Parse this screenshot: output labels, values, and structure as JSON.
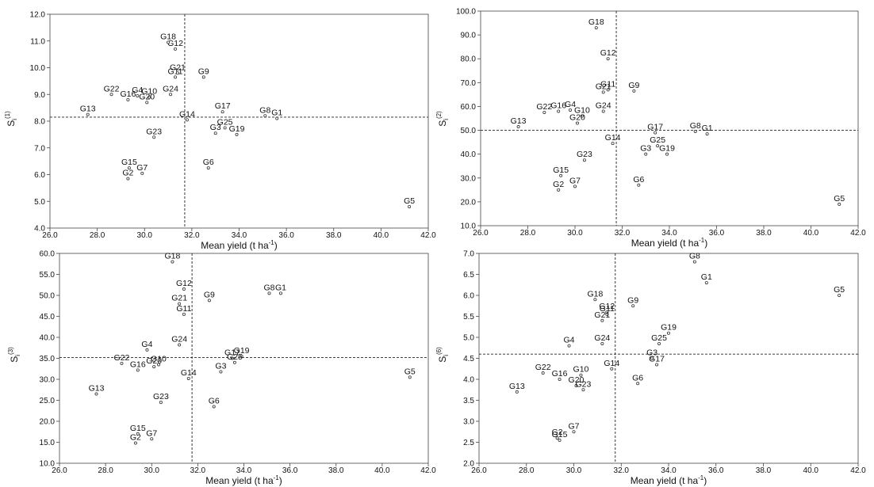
{
  "chart_data": [
    {
      "type": "scatter",
      "ylabel": "Si(1)",
      "ylabel_main": "S",
      "ylabel_sub": "i",
      "ylabel_sup": "(1)",
      "xlabel": "Mean yield (t ha-1)",
      "xlabel_main": "Mean yield (t ha",
      "xlabel_sup": "-1",
      "xlabel_close": ")",
      "xlim": [
        26.0,
        42.0
      ],
      "ylim": [
        4.0,
        12.0
      ],
      "xticks": [
        "26.0",
        "28.0",
        "30.0",
        "32.0",
        "34.0",
        "36.0",
        "38.0",
        "40.0",
        "42.0"
      ],
      "yticks": [
        "4.0",
        "5.0",
        "6.0",
        "7.0",
        "8.0",
        "9.0",
        "10.0",
        "11.0",
        "12.0"
      ],
      "ref_x": 31.7,
      "ref_y": 8.15,
      "points": [
        {
          "label": "G1",
          "x": 35.6,
          "y": 8.1
        },
        {
          "label": "G2",
          "x": 29.3,
          "y": 5.85
        },
        {
          "label": "G3",
          "x": 33.0,
          "y": 7.55
        },
        {
          "label": "G4",
          "x": 29.7,
          "y": 8.95
        },
        {
          "label": "G5",
          "x": 41.2,
          "y": 4.8
        },
        {
          "label": "G6",
          "x": 32.7,
          "y": 6.25
        },
        {
          "label": "G7",
          "x": 29.9,
          "y": 6.05
        },
        {
          "label": "G8",
          "x": 35.1,
          "y": 8.2
        },
        {
          "label": "G9",
          "x": 32.5,
          "y": 9.65
        },
        {
          "label": "G10",
          "x": 30.2,
          "y": 8.9
        },
        {
          "label": "G11",
          "x": 31.3,
          "y": 9.65
        },
        {
          "label": "G12",
          "x": 31.3,
          "y": 10.7
        },
        {
          "label": "G13",
          "x": 27.6,
          "y": 8.25
        },
        {
          "label": "G14",
          "x": 31.8,
          "y": 8.05
        },
        {
          "label": "G15",
          "x": 29.35,
          "y": 6.25
        },
        {
          "label": "G16",
          "x": 29.3,
          "y": 8.8
        },
        {
          "label": "G17",
          "x": 33.3,
          "y": 8.35
        },
        {
          "label": "G18",
          "x": 31.0,
          "y": 10.95
        },
        {
          "label": "G19",
          "x": 33.9,
          "y": 7.5
        },
        {
          "label": "G20",
          "x": 30.1,
          "y": 8.7
        },
        {
          "label": "G21",
          "x": 31.4,
          "y": 9.8
        },
        {
          "label": "G22",
          "x": 28.6,
          "y": 9.0
        },
        {
          "label": "G23",
          "x": 30.4,
          "y": 7.4
        },
        {
          "label": "G24",
          "x": 31.1,
          "y": 9.0
        },
        {
          "label": "G25",
          "x": 33.4,
          "y": 7.75
        }
      ]
    },
    {
      "type": "scatter",
      "ylabel": "Si(2)",
      "ylabel_main": "S",
      "ylabel_sub": "i",
      "ylabel_sup": "(2)",
      "xlabel": "Mean yield (t ha-1)",
      "xlabel_main": "Mean yield (t ha",
      "xlabel_sup": "-1",
      "xlabel_close": ")",
      "xlim": [
        26.0,
        42.0
      ],
      "ylim": [
        10.0,
        100.0
      ],
      "xticks": [
        "26.0",
        "28.0",
        "30.0",
        "32.0",
        "34.0",
        "36.0",
        "38.0",
        "40.0",
        "42.0"
      ],
      "yticks": [
        "10.0",
        "20.0",
        "30.0",
        "40.0",
        "50.0",
        "60.0",
        "70.0",
        "80.0",
        "90.0",
        "100.0"
      ],
      "ref_x": 31.75,
      "ref_y": 50.0,
      "points": [
        {
          "label": "G1",
          "x": 35.6,
          "y": 48.5
        },
        {
          "label": "G2",
          "x": 29.3,
          "y": 25.0
        },
        {
          "label": "G3",
          "x": 33.0,
          "y": 40.0
        },
        {
          "label": "G4",
          "x": 29.8,
          "y": 58.5
        },
        {
          "label": "G5",
          "x": 41.2,
          "y": 19.0
        },
        {
          "label": "G6",
          "x": 32.7,
          "y": 27.0
        },
        {
          "label": "G7",
          "x": 30.0,
          "y": 26.5
        },
        {
          "label": "G8",
          "x": 35.1,
          "y": 49.5
        },
        {
          "label": "G9",
          "x": 32.5,
          "y": 66.5
        },
        {
          "label": "G10",
          "x": 30.3,
          "y": 56.0
        },
        {
          "label": "G11",
          "x": 31.4,
          "y": 67.0
        },
        {
          "label": "G12",
          "x": 31.4,
          "y": 80.0
        },
        {
          "label": "G13",
          "x": 27.6,
          "y": 51.5
        },
        {
          "label": "G14",
          "x": 31.6,
          "y": 44.5
        },
        {
          "label": "G15",
          "x": 29.4,
          "y": 31.0
        },
        {
          "label": "G16",
          "x": 29.3,
          "y": 58.0
        },
        {
          "label": "G17",
          "x": 33.4,
          "y": 49.0
        },
        {
          "label": "G18",
          "x": 30.9,
          "y": 93.0
        },
        {
          "label": "G19",
          "x": 33.9,
          "y": 40.0
        },
        {
          "label": "G20",
          "x": 30.1,
          "y": 53.0
        },
        {
          "label": "G21",
          "x": 31.2,
          "y": 66.0
        },
        {
          "label": "G22",
          "x": 28.7,
          "y": 57.5
        },
        {
          "label": "G23",
          "x": 30.4,
          "y": 37.5
        },
        {
          "label": "G24",
          "x": 31.2,
          "y": 58.0
        },
        {
          "label": "G25",
          "x": 33.5,
          "y": 43.5
        }
      ]
    },
    {
      "type": "scatter",
      "ylabel": "Si(3)",
      "ylabel_main": "S",
      "ylabel_sub": "i",
      "ylabel_sup": "(3)",
      "xlabel": "Mean yield (t ha-1)",
      "xlabel_main": "Mean yield (t ha",
      "xlabel_sup": "-1",
      "xlabel_close": ")",
      "xlim": [
        26.0,
        42.0
      ],
      "ylim": [
        10.0,
        60.0
      ],
      "xticks": [
        "26.0",
        "28.0",
        "30.0",
        "32.0",
        "34.0",
        "36.0",
        "38.0",
        "40.0",
        "42.0"
      ],
      "yticks": [
        "10.0",
        "15.0",
        "20.0",
        "25.0",
        "30.0",
        "35.0",
        "40.0",
        "45.0",
        "50.0",
        "55.0",
        "60.0"
      ],
      "ref_x": 31.75,
      "ref_y": 35.2,
      "points": [
        {
          "label": "G1",
          "x": 35.6,
          "y": 50.5
        },
        {
          "label": "G2",
          "x": 29.3,
          "y": 14.8
        },
        {
          "label": "G3",
          "x": 33.0,
          "y": 31.8
        },
        {
          "label": "G4",
          "x": 29.8,
          "y": 37.0
        },
        {
          "label": "G5",
          "x": 41.2,
          "y": 30.5
        },
        {
          "label": "G6",
          "x": 32.7,
          "y": 23.5
        },
        {
          "label": "G7",
          "x": 30.0,
          "y": 15.8
        },
        {
          "label": "G8",
          "x": 35.1,
          "y": 50.5
        },
        {
          "label": "G9",
          "x": 32.5,
          "y": 48.8
        },
        {
          "label": "G10",
          "x": 30.3,
          "y": 33.5
        },
        {
          "label": "G11",
          "x": 31.4,
          "y": 45.5
        },
        {
          "label": "G12",
          "x": 31.4,
          "y": 51.5
        },
        {
          "label": "G13",
          "x": 27.6,
          "y": 26.5
        },
        {
          "label": "G14",
          "x": 31.6,
          "y": 30.2
        },
        {
          "label": "G15",
          "x": 29.4,
          "y": 17.0
        },
        {
          "label": "G16",
          "x": 29.4,
          "y": 32.2
        },
        {
          "label": "G17",
          "x": 33.5,
          "y": 35.0
        },
        {
          "label": "G18",
          "x": 30.9,
          "y": 58.0
        },
        {
          "label": "G19",
          "x": 33.9,
          "y": 35.5
        },
        {
          "label": "G20",
          "x": 30.1,
          "y": 33.0
        },
        {
          "label": "G21",
          "x": 31.2,
          "y": 48.0
        },
        {
          "label": "G22",
          "x": 28.7,
          "y": 33.8
        },
        {
          "label": "G23",
          "x": 30.4,
          "y": 24.5
        },
        {
          "label": "G24",
          "x": 31.2,
          "y": 38.2
        },
        {
          "label": "G25",
          "x": 33.6,
          "y": 34.0
        }
      ]
    },
    {
      "type": "scatter",
      "ylabel": "Si(6)",
      "ylabel_main": "S",
      "ylabel_sub": "i",
      "ylabel_sup": "(6)",
      "xlabel": "Mean yield (t ha-1)",
      "xlabel_main": "Mean yield (t ha",
      "xlabel_sup": "-1",
      "xlabel_close": ")",
      "xlim": [
        26.0,
        42.0
      ],
      "ylim": [
        2.0,
        7.0
      ],
      "xticks": [
        "26.0",
        "28.0",
        "30.0",
        "32.0",
        "34.0",
        "36.0",
        "38.0",
        "40.0",
        "42.0"
      ],
      "yticks": [
        "2.0",
        "2.5",
        "3.0",
        "3.5",
        "4.0",
        "4.5",
        "5.0",
        "5.5",
        "6.0",
        "6.5",
        "7.0"
      ],
      "ref_x": 31.75,
      "ref_y": 4.6,
      "points": [
        {
          "label": "G1",
          "x": 35.6,
          "y": 6.3
        },
        {
          "label": "G2",
          "x": 29.3,
          "y": 2.6
        },
        {
          "label": "G3",
          "x": 33.3,
          "y": 4.5
        },
        {
          "label": "G4",
          "x": 29.8,
          "y": 4.8
        },
        {
          "label": "G5",
          "x": 41.2,
          "y": 6.0
        },
        {
          "label": "G6",
          "x": 32.7,
          "y": 3.9
        },
        {
          "label": "G7",
          "x": 30.0,
          "y": 2.75
        },
        {
          "label": "G8",
          "x": 35.1,
          "y": 6.8
        },
        {
          "label": "G9",
          "x": 32.5,
          "y": 5.75
        },
        {
          "label": "G10",
          "x": 30.3,
          "y": 4.1
        },
        {
          "label": "G11",
          "x": 31.4,
          "y": 5.55
        },
        {
          "label": "G12",
          "x": 31.4,
          "y": 5.6
        },
        {
          "label": "G13",
          "x": 27.6,
          "y": 3.7
        },
        {
          "label": "G14",
          "x": 31.6,
          "y": 4.25
        },
        {
          "label": "G15",
          "x": 29.4,
          "y": 2.55
        },
        {
          "label": "G16",
          "x": 29.4,
          "y": 4.0
        },
        {
          "label": "G17",
          "x": 33.5,
          "y": 4.35
        },
        {
          "label": "G18",
          "x": 30.9,
          "y": 5.9
        },
        {
          "label": "G19",
          "x": 34.0,
          "y": 5.1
        },
        {
          "label": "G20",
          "x": 30.1,
          "y": 3.85
        },
        {
          "label": "G21",
          "x": 31.2,
          "y": 5.4
        },
        {
          "label": "G22",
          "x": 28.7,
          "y": 4.15
        },
        {
          "label": "G23",
          "x": 30.4,
          "y": 3.75
        },
        {
          "label": "G24",
          "x": 31.2,
          "y": 4.85
        },
        {
          "label": "G25",
          "x": 33.6,
          "y": 4.85
        }
      ]
    }
  ]
}
